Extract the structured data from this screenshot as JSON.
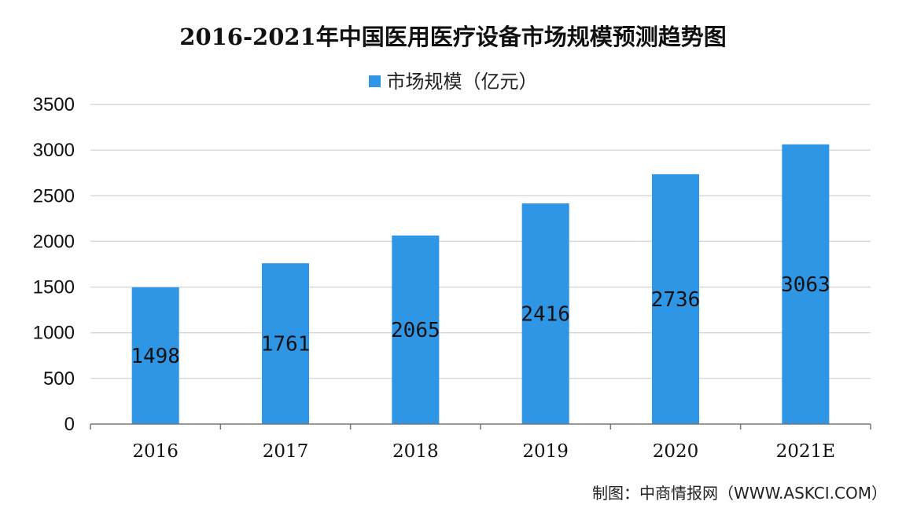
{
  "chart_data": {
    "type": "bar",
    "title": "2016-2021年中国医用医疗设备市场规模预测趋势图",
    "categories": [
      "2016",
      "2017",
      "2018",
      "2019",
      "2020",
      "2021E"
    ],
    "series": [
      {
        "name": "市场规模（亿元）",
        "values": [
          1498,
          1761,
          2065,
          2416,
          2736,
          3063
        ],
        "color": "#2f96e6"
      }
    ],
    "ylim": [
      0,
      3500
    ],
    "yticks": [
      0,
      500,
      1000,
      1500,
      2000,
      2500,
      3000,
      3500
    ],
    "grid": true,
    "legend_position": "top",
    "data_labels": true
  },
  "credit": "制图：中商情报网（WWW.ASKCI.COM）",
  "colors": {
    "bar": "#2f96e6",
    "grid": "#d9d9d9",
    "axis": "#777777"
  }
}
